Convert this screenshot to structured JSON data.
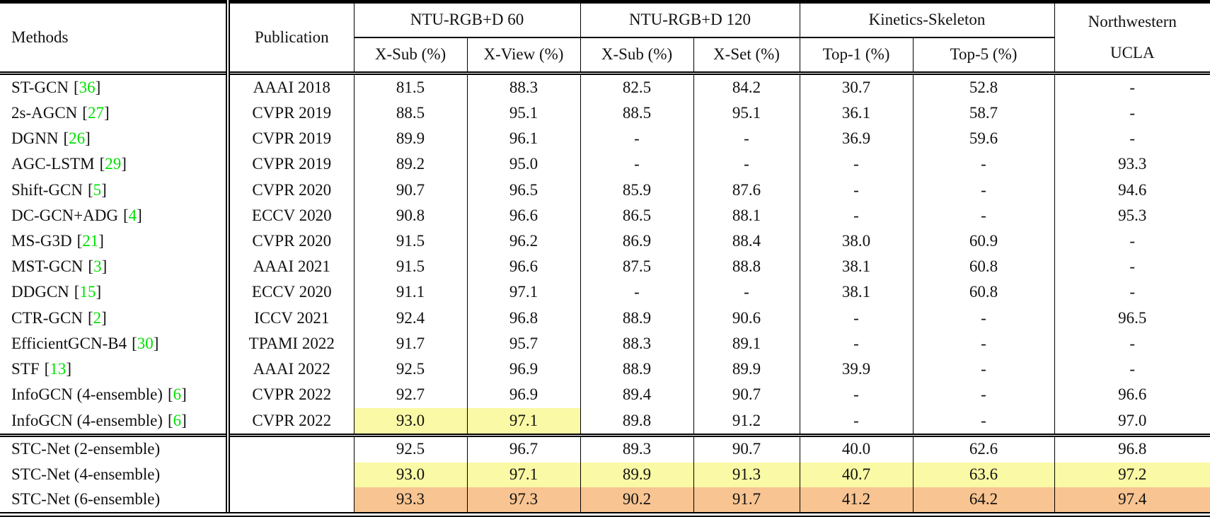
{
  "table": {
    "header": {
      "methods": "Methods",
      "publication": "Publication",
      "groups": [
        {
          "label": "NTU-RGB+D 60",
          "sub": [
            "X-Sub (%)",
            "X-View (%)"
          ]
        },
        {
          "label": "NTU-RGB+D 120",
          "sub": [
            "X-Sub (%)",
            "X-Set (%)"
          ]
        },
        {
          "label": "Kinetics-Skeleton",
          "sub": [
            "Top-1 (%)",
            "Top-5 (%)"
          ]
        },
        {
          "label": "Northwestern",
          "sublabel": "UCLA"
        }
      ]
    },
    "rows": [
      {
        "method": "ST-GCN",
        "cite": "[36]",
        "publication": "AAAI 2018",
        "values": [
          "81.5",
          "88.3",
          "82.5",
          "84.2",
          "30.7",
          "52.8",
          "-"
        ],
        "highlights": []
      },
      {
        "method": "2s-AGCN",
        "cite": "[27]",
        "publication": "CVPR 2019",
        "values": [
          "88.5",
          "95.1",
          "88.5",
          "95.1",
          "36.1",
          "58.7",
          "-"
        ],
        "highlights": []
      },
      {
        "method": "DGNN",
        "cite": "[26]",
        "publication": "CVPR 2019",
        "values": [
          "89.9",
          "96.1",
          "-",
          "-",
          "36.9",
          "59.6",
          "-"
        ],
        "highlights": []
      },
      {
        "method": "AGC-LSTM",
        "cite": "[29]",
        "publication": "CVPR 2019",
        "values": [
          "89.2",
          "95.0",
          "-",
          "-",
          "-",
          "-",
          "93.3"
        ],
        "highlights": []
      },
      {
        "method": "Shift-GCN",
        "cite": "[5]",
        "publication": "CVPR 2020",
        "values": [
          "90.7",
          "96.5",
          "85.9",
          "87.6",
          "-",
          "-",
          "94.6"
        ],
        "highlights": []
      },
      {
        "method": "DC-GCN+ADG",
        "cite": "[4]",
        "publication": "ECCV 2020",
        "values": [
          "90.8",
          "96.6",
          "86.5",
          "88.1",
          "-",
          "-",
          "95.3"
        ],
        "highlights": []
      },
      {
        "method": "MS-G3D",
        "cite": "[21]",
        "publication": "CVPR 2020",
        "values": [
          "91.5",
          "96.2",
          "86.9",
          "88.4",
          "38.0",
          "60.9",
          "-"
        ],
        "highlights": []
      },
      {
        "method": "MST-GCN",
        "cite": "[3]",
        "publication": "AAAI 2021",
        "values": [
          "91.5",
          "96.6",
          "87.5",
          "88.8",
          "38.1",
          "60.8",
          "-"
        ],
        "highlights": []
      },
      {
        "method": "DDGCN",
        "cite": "[15]",
        "publication": "ECCV 2020",
        "values": [
          "91.1",
          "97.1",
          "-",
          "-",
          "38.1",
          "60.8",
          "-"
        ],
        "highlights": []
      },
      {
        "method": "CTR-GCN",
        "cite": "[2]",
        "publication": "ICCV 2021",
        "values": [
          "92.4",
          "96.8",
          "88.9",
          "90.6",
          "-",
          "-",
          "96.5"
        ],
        "highlights": []
      },
      {
        "method": "EfficientGCN-B4",
        "cite": "[30]",
        "publication": "TPAMI 2022",
        "values": [
          "91.7",
          "95.7",
          "88.3",
          "89.1",
          "-",
          "-",
          "-"
        ],
        "highlights": []
      },
      {
        "method": "STF",
        "cite": "[13]",
        "publication": "AAAI 2022",
        "values": [
          "92.5",
          "96.9",
          "88.9",
          "89.9",
          "39.9",
          "-",
          "-"
        ],
        "highlights": []
      },
      {
        "method": "InfoGCN (4-ensemble)",
        "cite": "[6]",
        "publication": "CVPR 2022",
        "values": [
          "92.7",
          "96.9",
          "89.4",
          "90.7",
          "-",
          "-",
          "96.6"
        ],
        "highlights": []
      },
      {
        "method": "InfoGCN (4-ensemble)",
        "cite": "[6]",
        "publication": "CVPR 2022",
        "values": [
          "93.0",
          "97.1",
          "89.8",
          "91.2",
          "-",
          "-",
          "97.0"
        ],
        "highlights": [
          "yellow",
          "yellow",
          null,
          null,
          null,
          null,
          null
        ]
      }
    ],
    "footer_rows": [
      {
        "method": "STC-Net (2-ensemble)",
        "cite": null,
        "publication": "",
        "values": [
          "92.5",
          "96.7",
          "89.3",
          "90.7",
          "40.0",
          "62.6",
          "96.8"
        ],
        "highlights": []
      },
      {
        "method": "STC-Net (4-ensemble)",
        "cite": null,
        "publication": "",
        "values": [
          "93.0",
          "97.1",
          "89.9",
          "91.3",
          "40.7",
          "63.6",
          "97.2"
        ],
        "highlights": [
          "yellow",
          "yellow",
          "yellow",
          "yellow",
          "yellow",
          "yellow",
          "yellow"
        ]
      },
      {
        "method": "STC-Net (6-ensemble)",
        "cite": null,
        "publication": "",
        "values": [
          "93.3",
          "97.3",
          "90.2",
          "91.7",
          "41.2",
          "64.2",
          "97.4"
        ],
        "highlights": [
          "orange",
          "orange",
          "orange",
          "orange",
          "orange",
          "orange",
          "orange"
        ]
      }
    ]
  },
  "colors": {
    "highlight_yellow": "#FAF9A5",
    "highlight_orange": "#F8C491",
    "citation_green": "#00E000"
  }
}
